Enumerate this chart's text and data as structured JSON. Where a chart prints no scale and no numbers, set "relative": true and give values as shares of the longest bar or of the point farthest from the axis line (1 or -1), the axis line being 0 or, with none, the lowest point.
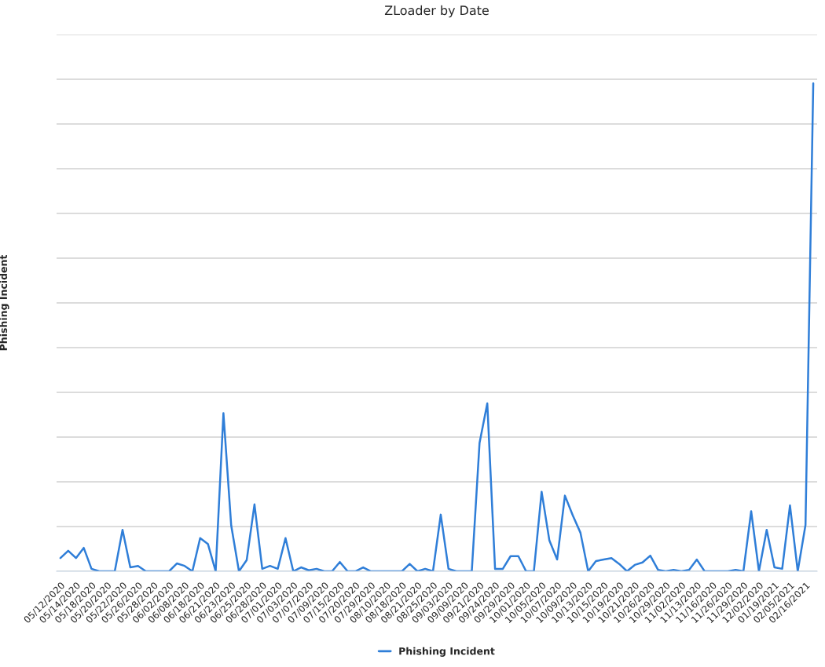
{
  "chart_data": {
    "type": "line",
    "title": "ZLoader by Date",
    "ylabel": "Phishing Incident",
    "relative": true,
    "grid": "y",
    "legend": "bottom",
    "marker": "none",
    "line_style": "solid",
    "categories": [
      "05/12/2020",
      null,
      "05/14/2020",
      null,
      "05/18/2020",
      null,
      "05/20/2020",
      null,
      "05/22/2020",
      null,
      "05/26/2020",
      null,
      "05/28/2020",
      null,
      "06/02/2020",
      null,
      "06/08/2020",
      null,
      "06/18/2020",
      null,
      "06/21/2020",
      null,
      "06/23/2020",
      null,
      "06/25/2020",
      null,
      "06/28/2020",
      null,
      "07/01/2020",
      null,
      "07/03/2020",
      null,
      "07/07/2020",
      null,
      "07/09/2020",
      null,
      "07/15/2020",
      null,
      "07/20/2020",
      null,
      "07/29/2020",
      null,
      "08/10/2020",
      null,
      "08/18/2020",
      null,
      "08/21/2020",
      null,
      "08/25/2020",
      null,
      "09/03/2020",
      null,
      "09/09/2020",
      null,
      "09/21/2020",
      null,
      "09/24/2020",
      null,
      "09/29/2020",
      null,
      "10/01/2020",
      null,
      "10/05/2020",
      null,
      "10/07/2020",
      null,
      "10/09/2020",
      null,
      "10/13/2020",
      null,
      "10/15/2020",
      null,
      "10/19/2020",
      null,
      "10/21/2020",
      null,
      "10/26/2020",
      null,
      "10/29/2020",
      null,
      "11/02/2020",
      null,
      "11/13/2020",
      null,
      "11/16/2020",
      null,
      "11/26/2020",
      null,
      "11/29/2020",
      null,
      "12/02/2020",
      null,
      "01/19/2021",
      null,
      "02/05/2021",
      null,
      "02/16/2021",
      null
    ],
    "series": [
      {
        "name": "Phishing Incident",
        "color": "#2f7ed8",
        "values": [
          0.027,
          0.042,
          0.027,
          0.048,
          0.005,
          0,
          0,
          0,
          0.085,
          0.008,
          0.011,
          0,
          0,
          0,
          0,
          0.016,
          0.011,
          0,
          0.068,
          0.056,
          0,
          0.324,
          0.094,
          0,
          0.023,
          0.137,
          0.005,
          0.011,
          0.005,
          0.068,
          0,
          0.008,
          0.002,
          0.005,
          0,
          0,
          0.019,
          0,
          0,
          0.008,
          0,
          0,
          0,
          0,
          0,
          0.015,
          0,
          0.005,
          0,
          0.116,
          0.005,
          0,
          0,
          0,
          0.263,
          0.344,
          0.005,
          0.005,
          0.031,
          0.031,
          0,
          0,
          0.163,
          0.063,
          0.024,
          0.155,
          0.115,
          0.079,
          0,
          0.021,
          0.024,
          0.027,
          0.015,
          0,
          0.013,
          0.018,
          0.032,
          0.003,
          0,
          0.003,
          0,
          0.003,
          0.024,
          0,
          0,
          0,
          0,
          0.003,
          0,
          0.123,
          0,
          0.085,
          0.008,
          0.005,
          0.135,
          0,
          0.095,
          1
        ]
      }
    ]
  }
}
